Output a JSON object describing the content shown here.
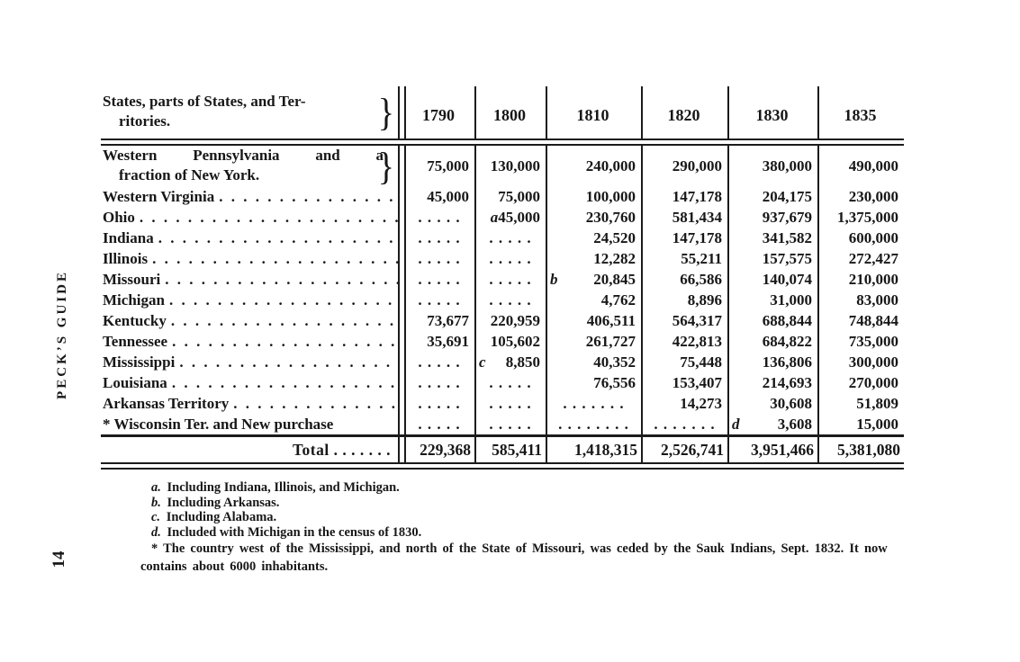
{
  "page": {
    "running_head": "PECK’S GUIDE",
    "page_number": "14"
  },
  "table": {
    "brace_glyph": "}",
    "leader_dots": ". . . . . . . . . . . . . . . . . . . . . . . . . . . . . . . . . . . . . . . .",
    "header": {
      "label_line1": "States, parts of States, and Ter-",
      "label_line2": "ritories.",
      "years": [
        "1790",
        "1800",
        "1810",
        "1820",
        "1830",
        "1835"
      ]
    },
    "rows": [
      {
        "label": "Western Pennsylvania and a",
        "label2": "fraction of New York.",
        "brace": true,
        "leader": false,
        "cells": [
          "75,000",
          "130,000",
          "240,000",
          "290,000",
          "380,000",
          "490,000"
        ]
      },
      {
        "label": "Western Virginia",
        "leader": true,
        "cells": [
          "45,000",
          "75,000",
          "100,000",
          "147,178",
          "204,175",
          "230,000"
        ]
      },
      {
        "label": "Ohio",
        "leader": true,
        "cells": [
          ". . . . .",
          "a45,000",
          "230,760",
          "581,434",
          "937,679",
          "1,375,000"
        ]
      },
      {
        "label": "Indiana",
        "leader": true,
        "cells": [
          ". . . . .",
          ". . . . .",
          "24,520",
          "147,178",
          "341,582",
          "600,000"
        ]
      },
      {
        "label": "Illinois",
        "leader": true,
        "cells": [
          ". . . . .",
          ". . . . .",
          "12,282",
          "55,211",
          "157,575",
          "272,427"
        ]
      },
      {
        "label": "Missouri",
        "leader": true,
        "cells": [
          ". . . . .",
          ". . . . .",
          "b 20,845",
          "66,586",
          "140,074",
          "210,000"
        ]
      },
      {
        "label": "Michigan",
        "leader": true,
        "cells": [
          ". . . . .",
          ". . . . .",
          "4,762",
          "8,896",
          "31,000",
          "83,000"
        ]
      },
      {
        "label": "Kentucky",
        "leader": true,
        "cells": [
          "73,677",
          "220,959",
          "406,511",
          "564,317",
          "688,844",
          "748,844"
        ]
      },
      {
        "label": "Tennessee",
        "leader": true,
        "cells": [
          "35,691",
          "105,602",
          "261,727",
          "422,813",
          "684,822",
          "735,000"
        ]
      },
      {
        "label": "Mississippi",
        "leader": true,
        "cells": [
          ". . . . .",
          "c 8,850",
          "40,352",
          "75,448",
          "136,806",
          "300,000"
        ]
      },
      {
        "label": "Louisiana",
        "leader": true,
        "cells": [
          ". . . . .",
          ". . . . .",
          "76,556",
          "153,407",
          "214,693",
          "270,000"
        ]
      },
      {
        "label": "Arkansas Territory",
        "leader": true,
        "cells": [
          ". . . . .",
          ". . . . .",
          ". . . . . . .",
          "14,273",
          "30,608",
          "51,809"
        ]
      },
      {
        "label": "* Wisconsin Ter. and New purchase",
        "leader": false,
        "cells": [
          ". . . . .",
          ". . . . .",
          ". . . . . . . .",
          ". . . . . . .",
          "d 3,608",
          "15,000"
        ]
      }
    ],
    "total": {
      "label": "Total",
      "dots": ". . . . . . .",
      "cells": [
        "229,368",
        "585,411",
        "1,418,315",
        "2,526,741",
        "3,951,466",
        "5,381,080"
      ]
    }
  },
  "footnotes": [
    {
      "mark": "a.",
      "text": "Including Indiana, Illinois, and Michigan."
    },
    {
      "mark": "b.",
      "text": "Including Arkansas."
    },
    {
      "mark": "c.",
      "text": "Including Alabama."
    },
    {
      "mark": "d.",
      "text": "Included with Michigan in the census of 1830."
    },
    {
      "mark": "*",
      "text": "The country west of the Mississippi, and north of the State of Missouri, was ceded by the Sauk Indians, Sept. 1832.  It now contains about 6000 inhabitants."
    }
  ]
}
